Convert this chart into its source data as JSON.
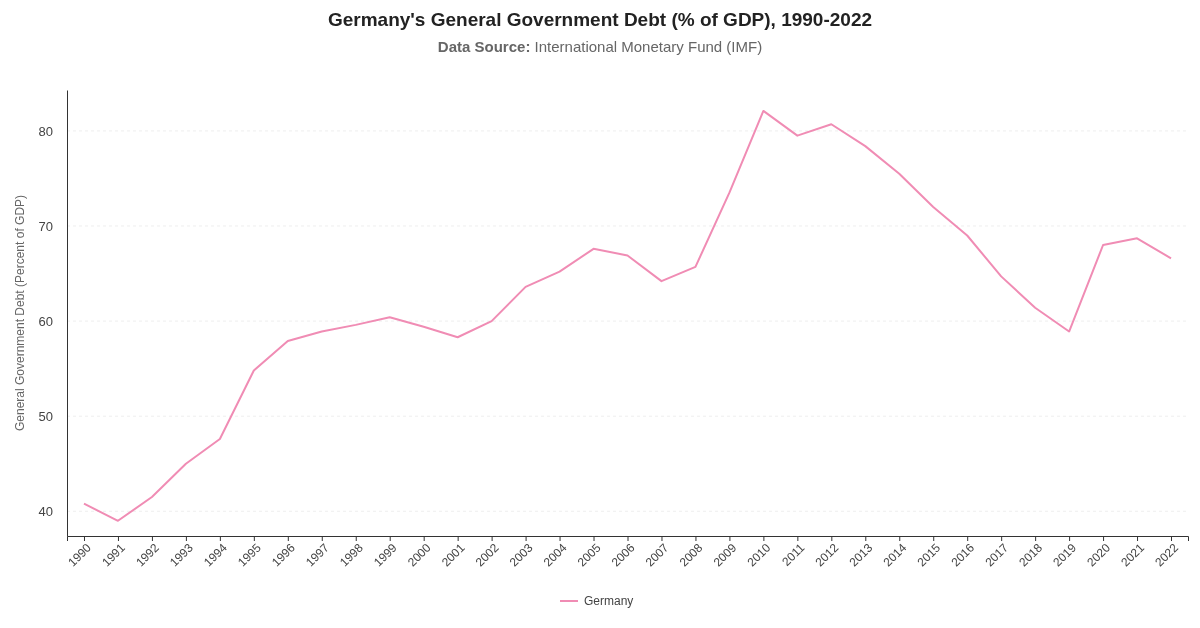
{
  "chart_data": {
    "type": "line",
    "title": "Germany's General Government Debt (% of GDP), 1990-2022",
    "subtitle": "Data Source: International Monetary Fund (IMF)",
    "ylabel": "General Government Debt (Percent of GDP)",
    "categories": [
      "1990",
      "1991",
      "1992",
      "1993",
      "1994",
      "1995",
      "1996",
      "1997",
      "1998",
      "1999",
      "2000",
      "2001",
      "2002",
      "2003",
      "2004",
      "2005",
      "2006",
      "2007",
      "2008",
      "2009",
      "2010",
      "2011",
      "2012",
      "2013",
      "2014",
      "2015",
      "2016",
      "2017",
      "2018",
      "2019",
      "2020",
      "2021",
      "2022"
    ],
    "series": [
      {
        "name": "Germany",
        "color": "#f08cb4",
        "values": [
          40.8,
          39.0,
          41.5,
          45.0,
          47.6,
          54.8,
          57.9,
          58.9,
          59.6,
          60.4,
          59.4,
          58.3,
          60.0,
          63.6,
          65.2,
          67.6,
          66.9,
          64.2,
          65.7,
          73.5,
          82.1,
          79.5,
          80.7,
          78.4,
          75.5,
          72.0,
          69.0,
          64.7,
          61.4,
          58.9,
          68.0,
          68.7,
          66.6
        ]
      }
    ],
    "ylim": [
      37.4,
      84.3
    ],
    "yticks": [
      40,
      50,
      60,
      70,
      80
    ],
    "grid": "y",
    "legend": "bottom",
    "marker": "none",
    "line_style": "solid"
  }
}
